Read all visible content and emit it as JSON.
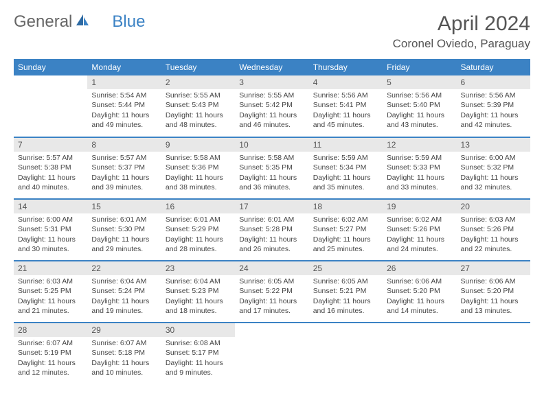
{
  "logo": {
    "word1": "General",
    "word2": "Blue"
  },
  "title": "April 2024",
  "location": "Coronel Oviedo, Paraguay",
  "colors": {
    "header_bg": "#3b82c4",
    "header_text": "#ffffff",
    "daynum_bg": "#e8e8e8",
    "rule": "#3b82c4",
    "text": "#444444",
    "title_text": "#555555"
  },
  "columns": [
    "Sunday",
    "Monday",
    "Tuesday",
    "Wednesday",
    "Thursday",
    "Friday",
    "Saturday"
  ],
  "weeks": [
    [
      {
        "n": "",
        "sunrise": "",
        "sunset": "",
        "dl": "",
        "empty": true
      },
      {
        "n": "1",
        "sunrise": "5:54 AM",
        "sunset": "5:44 PM",
        "dl": "11 hours and 49 minutes."
      },
      {
        "n": "2",
        "sunrise": "5:55 AM",
        "sunset": "5:43 PM",
        "dl": "11 hours and 48 minutes."
      },
      {
        "n": "3",
        "sunrise": "5:55 AM",
        "sunset": "5:42 PM",
        "dl": "11 hours and 46 minutes."
      },
      {
        "n": "4",
        "sunrise": "5:56 AM",
        "sunset": "5:41 PM",
        "dl": "11 hours and 45 minutes."
      },
      {
        "n": "5",
        "sunrise": "5:56 AM",
        "sunset": "5:40 PM",
        "dl": "11 hours and 43 minutes."
      },
      {
        "n": "6",
        "sunrise": "5:56 AM",
        "sunset": "5:39 PM",
        "dl": "11 hours and 42 minutes."
      }
    ],
    [
      {
        "n": "7",
        "sunrise": "5:57 AM",
        "sunset": "5:38 PM",
        "dl": "11 hours and 40 minutes."
      },
      {
        "n": "8",
        "sunrise": "5:57 AM",
        "sunset": "5:37 PM",
        "dl": "11 hours and 39 minutes."
      },
      {
        "n": "9",
        "sunrise": "5:58 AM",
        "sunset": "5:36 PM",
        "dl": "11 hours and 38 minutes."
      },
      {
        "n": "10",
        "sunrise": "5:58 AM",
        "sunset": "5:35 PM",
        "dl": "11 hours and 36 minutes."
      },
      {
        "n": "11",
        "sunrise": "5:59 AM",
        "sunset": "5:34 PM",
        "dl": "11 hours and 35 minutes."
      },
      {
        "n": "12",
        "sunrise": "5:59 AM",
        "sunset": "5:33 PM",
        "dl": "11 hours and 33 minutes."
      },
      {
        "n": "13",
        "sunrise": "6:00 AM",
        "sunset": "5:32 PM",
        "dl": "11 hours and 32 minutes."
      }
    ],
    [
      {
        "n": "14",
        "sunrise": "6:00 AM",
        "sunset": "5:31 PM",
        "dl": "11 hours and 30 minutes."
      },
      {
        "n": "15",
        "sunrise": "6:01 AM",
        "sunset": "5:30 PM",
        "dl": "11 hours and 29 minutes."
      },
      {
        "n": "16",
        "sunrise": "6:01 AM",
        "sunset": "5:29 PM",
        "dl": "11 hours and 28 minutes."
      },
      {
        "n": "17",
        "sunrise": "6:01 AM",
        "sunset": "5:28 PM",
        "dl": "11 hours and 26 minutes."
      },
      {
        "n": "18",
        "sunrise": "6:02 AM",
        "sunset": "5:27 PM",
        "dl": "11 hours and 25 minutes."
      },
      {
        "n": "19",
        "sunrise": "6:02 AM",
        "sunset": "5:26 PM",
        "dl": "11 hours and 24 minutes."
      },
      {
        "n": "20",
        "sunrise": "6:03 AM",
        "sunset": "5:26 PM",
        "dl": "11 hours and 22 minutes."
      }
    ],
    [
      {
        "n": "21",
        "sunrise": "6:03 AM",
        "sunset": "5:25 PM",
        "dl": "11 hours and 21 minutes."
      },
      {
        "n": "22",
        "sunrise": "6:04 AM",
        "sunset": "5:24 PM",
        "dl": "11 hours and 19 minutes."
      },
      {
        "n": "23",
        "sunrise": "6:04 AM",
        "sunset": "5:23 PM",
        "dl": "11 hours and 18 minutes."
      },
      {
        "n": "24",
        "sunrise": "6:05 AM",
        "sunset": "5:22 PM",
        "dl": "11 hours and 17 minutes."
      },
      {
        "n": "25",
        "sunrise": "6:05 AM",
        "sunset": "5:21 PM",
        "dl": "11 hours and 16 minutes."
      },
      {
        "n": "26",
        "sunrise": "6:06 AM",
        "sunset": "5:20 PM",
        "dl": "11 hours and 14 minutes."
      },
      {
        "n": "27",
        "sunrise": "6:06 AM",
        "sunset": "5:20 PM",
        "dl": "11 hours and 13 minutes."
      }
    ],
    [
      {
        "n": "28",
        "sunrise": "6:07 AM",
        "sunset": "5:19 PM",
        "dl": "11 hours and 12 minutes."
      },
      {
        "n": "29",
        "sunrise": "6:07 AM",
        "sunset": "5:18 PM",
        "dl": "11 hours and 10 minutes."
      },
      {
        "n": "30",
        "sunrise": "6:08 AM",
        "sunset": "5:17 PM",
        "dl": "11 hours and 9 minutes."
      },
      {
        "n": "",
        "sunrise": "",
        "sunset": "",
        "dl": "",
        "empty": true
      },
      {
        "n": "",
        "sunrise": "",
        "sunset": "",
        "dl": "",
        "empty": true
      },
      {
        "n": "",
        "sunrise": "",
        "sunset": "",
        "dl": "",
        "empty": true
      },
      {
        "n": "",
        "sunrise": "",
        "sunset": "",
        "dl": "",
        "empty": true
      }
    ]
  ],
  "labels": {
    "sunrise": "Sunrise:",
    "sunset": "Sunset:",
    "daylight": "Daylight:"
  }
}
